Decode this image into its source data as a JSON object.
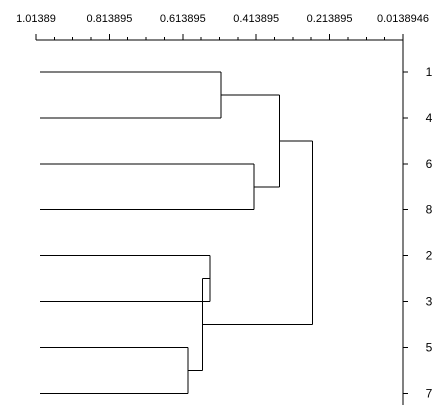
{
  "dendrogram": {
    "axis_position": "top",
    "axis_ticks": [
      "1.01389",
      "0.813895",
      "0.613895",
      "0.413895",
      "0.213895",
      "0.0138946"
    ],
    "axis_domain": [
      1.01389,
      0.0138946
    ],
    "leaf_labels": [
      "1",
      "4",
      "6",
      "8",
      "2",
      "3",
      "5",
      "7"
    ],
    "merges": [
      {
        "left": "1",
        "right": "4",
        "height": 0.51
      },
      {
        "left": "6",
        "right": "8",
        "height": 0.42
      },
      {
        "left": "(1,4)",
        "right": "(6,8)",
        "height": 0.35
      },
      {
        "left": "2",
        "right": "3",
        "height": 0.54
      },
      {
        "left": "5",
        "right": "7",
        "height": 0.6
      },
      {
        "left": "(2,3)",
        "right": "(5,7)",
        "height": 0.56
      },
      {
        "left": "(1,4,6,8)",
        "right": "(2,3,5,7)",
        "height": 0.26
      }
    ],
    "leaf_height": 1.01389
  }
}
